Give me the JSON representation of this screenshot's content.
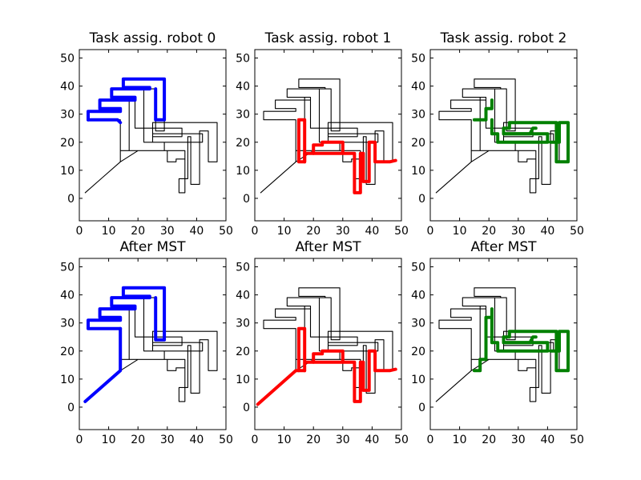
{
  "chart_data": {
    "type": "line",
    "xlim": [
      0,
      50
    ],
    "ylim": [
      -8,
      53
    ],
    "xticks": [
      0,
      10,
      20,
      30,
      40,
      50
    ],
    "yticks": [
      0,
      10,
      20,
      30,
      40,
      50
    ],
    "grid": false,
    "base_path": [
      [
        2,
        2
      ],
      [
        14,
        13
      ],
      [
        14,
        28
      ],
      [
        3,
        28
      ],
      [
        3,
        31
      ],
      [
        14,
        31
      ],
      [
        14,
        32
      ],
      [
        7,
        32
      ],
      [
        7,
        35
      ],
      [
        19,
        35
      ],
      [
        19,
        36
      ],
      [
        11,
        36
      ],
      [
        11,
        39
      ],
      [
        24,
        39
      ],
      [
        24,
        39.5
      ],
      [
        15,
        39.5
      ],
      [
        15,
        42.5
      ],
      [
        29,
        42.5
      ],
      [
        29,
        24
      ],
      [
        26,
        24
      ],
      [
        26,
        39
      ],
      [
        22,
        39
      ],
      [
        22,
        20
      ],
      [
        29,
        20
      ],
      [
        29,
        17
      ],
      [
        17,
        17
      ],
      [
        17,
        36
      ],
      [
        19,
        36
      ],
      [
        19,
        25
      ],
      [
        35,
        25
      ],
      [
        35,
        22
      ],
      [
        25,
        22
      ],
      [
        25,
        23
      ],
      [
        42,
        23
      ],
      [
        42,
        20
      ],
      [
        25,
        20
      ],
      [
        25,
        27
      ],
      [
        47,
        27
      ],
      [
        47,
        13
      ],
      [
        44,
        13
      ],
      [
        44,
        24
      ],
      [
        41,
        24
      ],
      [
        41,
        5
      ],
      [
        38,
        5
      ],
      [
        38,
        22
      ],
      [
        37,
        22
      ],
      [
        37,
        7
      ],
      [
        34,
        7
      ],
      [
        34,
        2
      ],
      [
        36,
        2
      ],
      [
        36,
        17
      ],
      [
        22,
        17
      ],
      [
        20,
        17
      ],
      [
        14,
        13
      ],
      [
        14,
        17
      ],
      [
        30,
        17
      ],
      [
        30,
        13
      ],
      [
        33,
        13
      ],
      [
        33,
        14
      ],
      [
        36,
        14
      ],
      [
        36,
        16
      ]
    ],
    "panels": [
      {
        "title": "Task assig. robot 0",
        "color": "#0000ff",
        "segments": [
          [
            [
              3,
              28
            ],
            [
              13,
              28
            ],
            [
              14,
              27
            ]
          ],
          [
            [
              3,
              28
            ],
            [
              3,
              31
            ],
            [
              14,
              31
            ],
            [
              14,
              32
            ],
            [
              7,
              32
            ],
            [
              7,
              35
            ],
            [
              19,
              35
            ],
            [
              19,
              36
            ],
            [
              11,
              36
            ],
            [
              11,
              39
            ],
            [
              24,
              39
            ],
            [
              24,
              39.5
            ],
            [
              15,
              39.5
            ],
            [
              15,
              42.5
            ],
            [
              29,
              42.5
            ],
            [
              29,
              28
            ],
            [
              26,
              28
            ],
            [
              26,
              39
            ]
          ]
        ]
      },
      {
        "title": "Task assig. robot 1",
        "color": "#ff0000",
        "segments": [
          [
            [
              15,
              13
            ],
            [
              17,
              13
            ],
            [
              17,
              28
            ],
            [
              15,
              28
            ],
            [
              15,
              13
            ]
          ],
          [
            [
              17,
              13
            ],
            [
              17,
              16
            ],
            [
              34,
              16
            ],
            [
              34,
              2
            ],
            [
              36,
              2
            ],
            [
              36,
              16
            ],
            [
              37,
              16
            ],
            [
              37,
              6
            ],
            [
              39,
              6
            ],
            [
              39,
              16
            ],
            [
              39,
              20
            ],
            [
              41,
              20
            ],
            [
              41,
              13
            ],
            [
              46,
              13
            ],
            [
              48,
              13.5
            ]
          ],
          [
            [
              20,
              16
            ],
            [
              20,
              19
            ],
            [
              23,
              19
            ],
            [
              23,
              20
            ],
            [
              30,
              20
            ],
            [
              30,
              16
            ]
          ]
        ]
      },
      {
        "title": "Task assig. robot 2",
        "color": "#008000",
        "segments": [
          [
            [
              15,
              28
            ],
            [
              19,
              28
            ],
            [
              19,
              32
            ],
            [
              21,
              32
            ],
            [
              21,
              35
            ]
          ],
          [
            [
              21,
              28
            ],
            [
              21,
              23
            ],
            [
              23,
              23
            ],
            [
              23,
              20
            ],
            [
              40,
              20
            ],
            [
              40,
              23
            ],
            [
              25,
              23
            ],
            [
              25,
              25
            ],
            [
              27,
              25
            ],
            [
              27,
              27
            ],
            [
              43,
              27
            ],
            [
              43,
              13
            ],
            [
              47,
              13
            ],
            [
              47,
              27
            ],
            [
              44,
              27
            ],
            [
              44,
              20
            ],
            [
              41,
              20
            ]
          ],
          [
            [
              25,
              23
            ],
            [
              34,
              23
            ],
            [
              35,
              25
            ],
            [
              36,
              25
            ]
          ]
        ]
      },
      {
        "title": "After MST",
        "color": "#0000ff",
        "segments": [
          [
            [
              2,
              2
            ],
            [
              14,
              13
            ],
            [
              14,
              28
            ]
          ],
          [
            [
              14,
              28
            ],
            [
              3,
              28
            ],
            [
              3,
              31
            ],
            [
              14,
              31
            ],
            [
              14,
              32
            ],
            [
              7,
              32
            ],
            [
              7,
              35
            ],
            [
              19,
              35
            ],
            [
              19,
              36
            ],
            [
              11,
              36
            ],
            [
              11,
              39
            ],
            [
              24,
              39
            ],
            [
              24,
              39.5
            ],
            [
              15,
              39.5
            ],
            [
              15,
              42.5
            ],
            [
              29,
              42.5
            ],
            [
              29,
              24
            ],
            [
              26,
              24
            ],
            [
              26,
              39
            ]
          ]
        ]
      },
      {
        "title": "After MST",
        "color": "#ff0000",
        "segments": [
          [
            [
              1,
              1
            ],
            [
              14,
              13
            ],
            [
              17,
              13
            ]
          ],
          [
            [
              15,
              13
            ],
            [
              15,
              28
            ],
            [
              17,
              28
            ],
            [
              17,
              13
            ],
            [
              17,
              16
            ],
            [
              34,
              16
            ],
            [
              34,
              2
            ],
            [
              36,
              2
            ],
            [
              36,
              16
            ],
            [
              37,
              16
            ],
            [
              37,
              6
            ],
            [
              39,
              6
            ],
            [
              39,
              16
            ],
            [
              39,
              20
            ],
            [
              41,
              20
            ],
            [
              41,
              13
            ],
            [
              46,
              13
            ],
            [
              48,
              13.5
            ]
          ],
          [
            [
              20,
              16
            ],
            [
              20,
              19
            ],
            [
              23,
              19
            ],
            [
              23,
              20
            ],
            [
              30,
              20
            ],
            [
              30,
              16
            ]
          ]
        ]
      },
      {
        "title": "After MST",
        "color": "#008000",
        "segments": [
          [
            [
              15,
              13
            ],
            [
              17,
              13
            ],
            [
              17,
              17
            ],
            [
              19,
              17
            ],
            [
              19,
              28
            ]
          ],
          [
            [
              19,
              28
            ],
            [
              19,
              32
            ],
            [
              21,
              32
            ],
            [
              21,
              35
            ],
            [
              21,
              28
            ],
            [
              21,
              23
            ],
            [
              23,
              23
            ],
            [
              23,
              20
            ],
            [
              40,
              20
            ],
            [
              40,
              23
            ],
            [
              25,
              23
            ],
            [
              25,
              25
            ],
            [
              27,
              25
            ],
            [
              27,
              27
            ],
            [
              43,
              27
            ],
            [
              43,
              13
            ],
            [
              47,
              13
            ],
            [
              47,
              27
            ],
            [
              44,
              27
            ],
            [
              44,
              20
            ],
            [
              41,
              20
            ]
          ],
          [
            [
              25,
              23
            ],
            [
              34,
              23
            ],
            [
              35,
              25
            ],
            [
              36,
              25
            ]
          ]
        ]
      }
    ]
  }
}
